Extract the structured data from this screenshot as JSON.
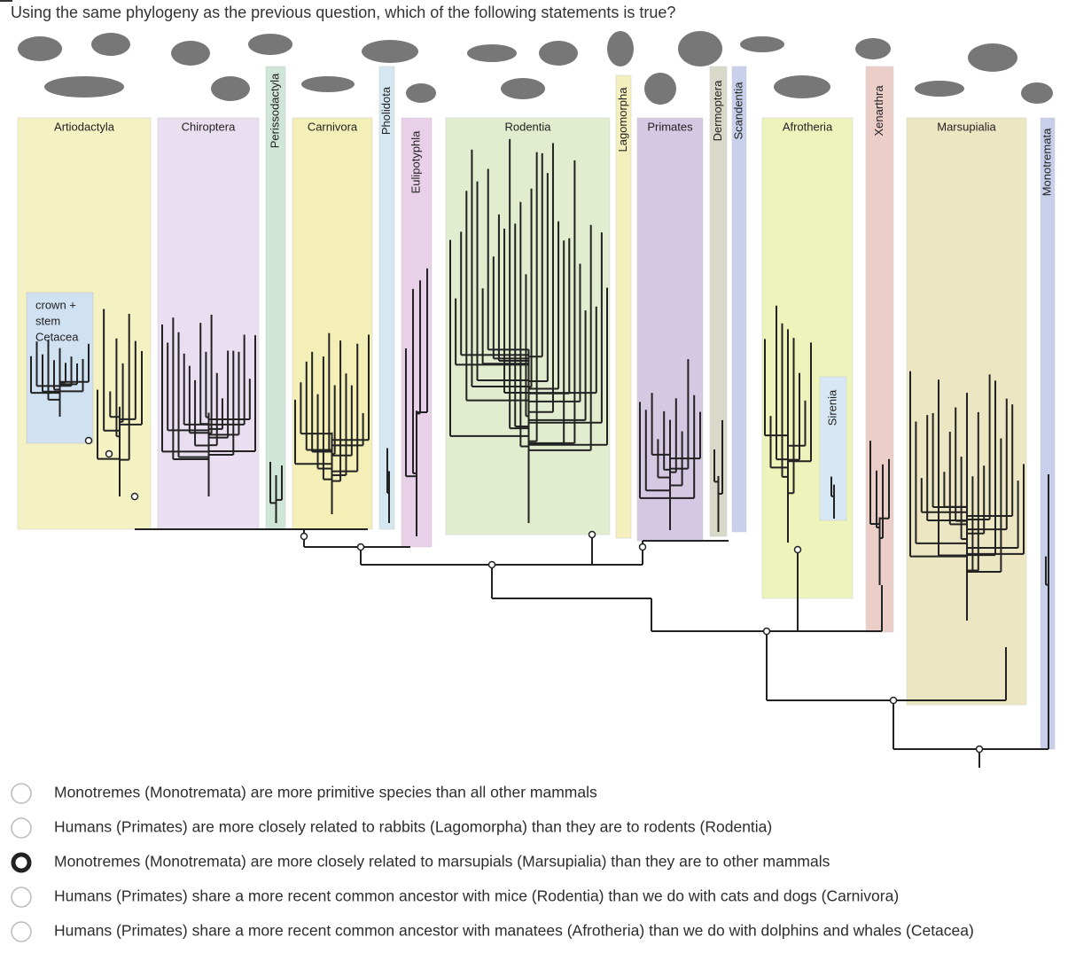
{
  "question": "Using the same phylogeny as the previous question, which of the following statements is true?",
  "clade_labels": [
    "Artiodactyla",
    "Chiroptera",
    "Perissodactyla",
    "Carnivora",
    "Pholidota",
    "Eulipotyphla",
    "Rodentia",
    "Lagomorpha",
    "Primates",
    "Dermoptera",
    "Scandentia",
    "Afrotheria",
    "Sirenia",
    "Xenarthra",
    "Marsupialia",
    "Monotremata"
  ],
  "cetacea_label": [
    "crown +",
    "stem",
    "Cetacea"
  ],
  "options": [
    "Monotremes (Monotremata) are more primitive species than all other mammals",
    "Humans (Primates) are more closely related to rabbits (Lagomorpha) than they are to rodents (Rodentia)",
    "Monotremes (Monotremata) are more closely related to marsupials (Marsupialia) than they are to other mammals",
    "Humans (Primates) share a more recent common ancestor with mice (Rodentia) than we do with cats and dogs (Carnivora)",
    "Humans (Primates) share a more recent common ancestor with manatees (Afrotheria) than we do with dolphins and whales (Cetacea)"
  ],
  "selected": 2
}
